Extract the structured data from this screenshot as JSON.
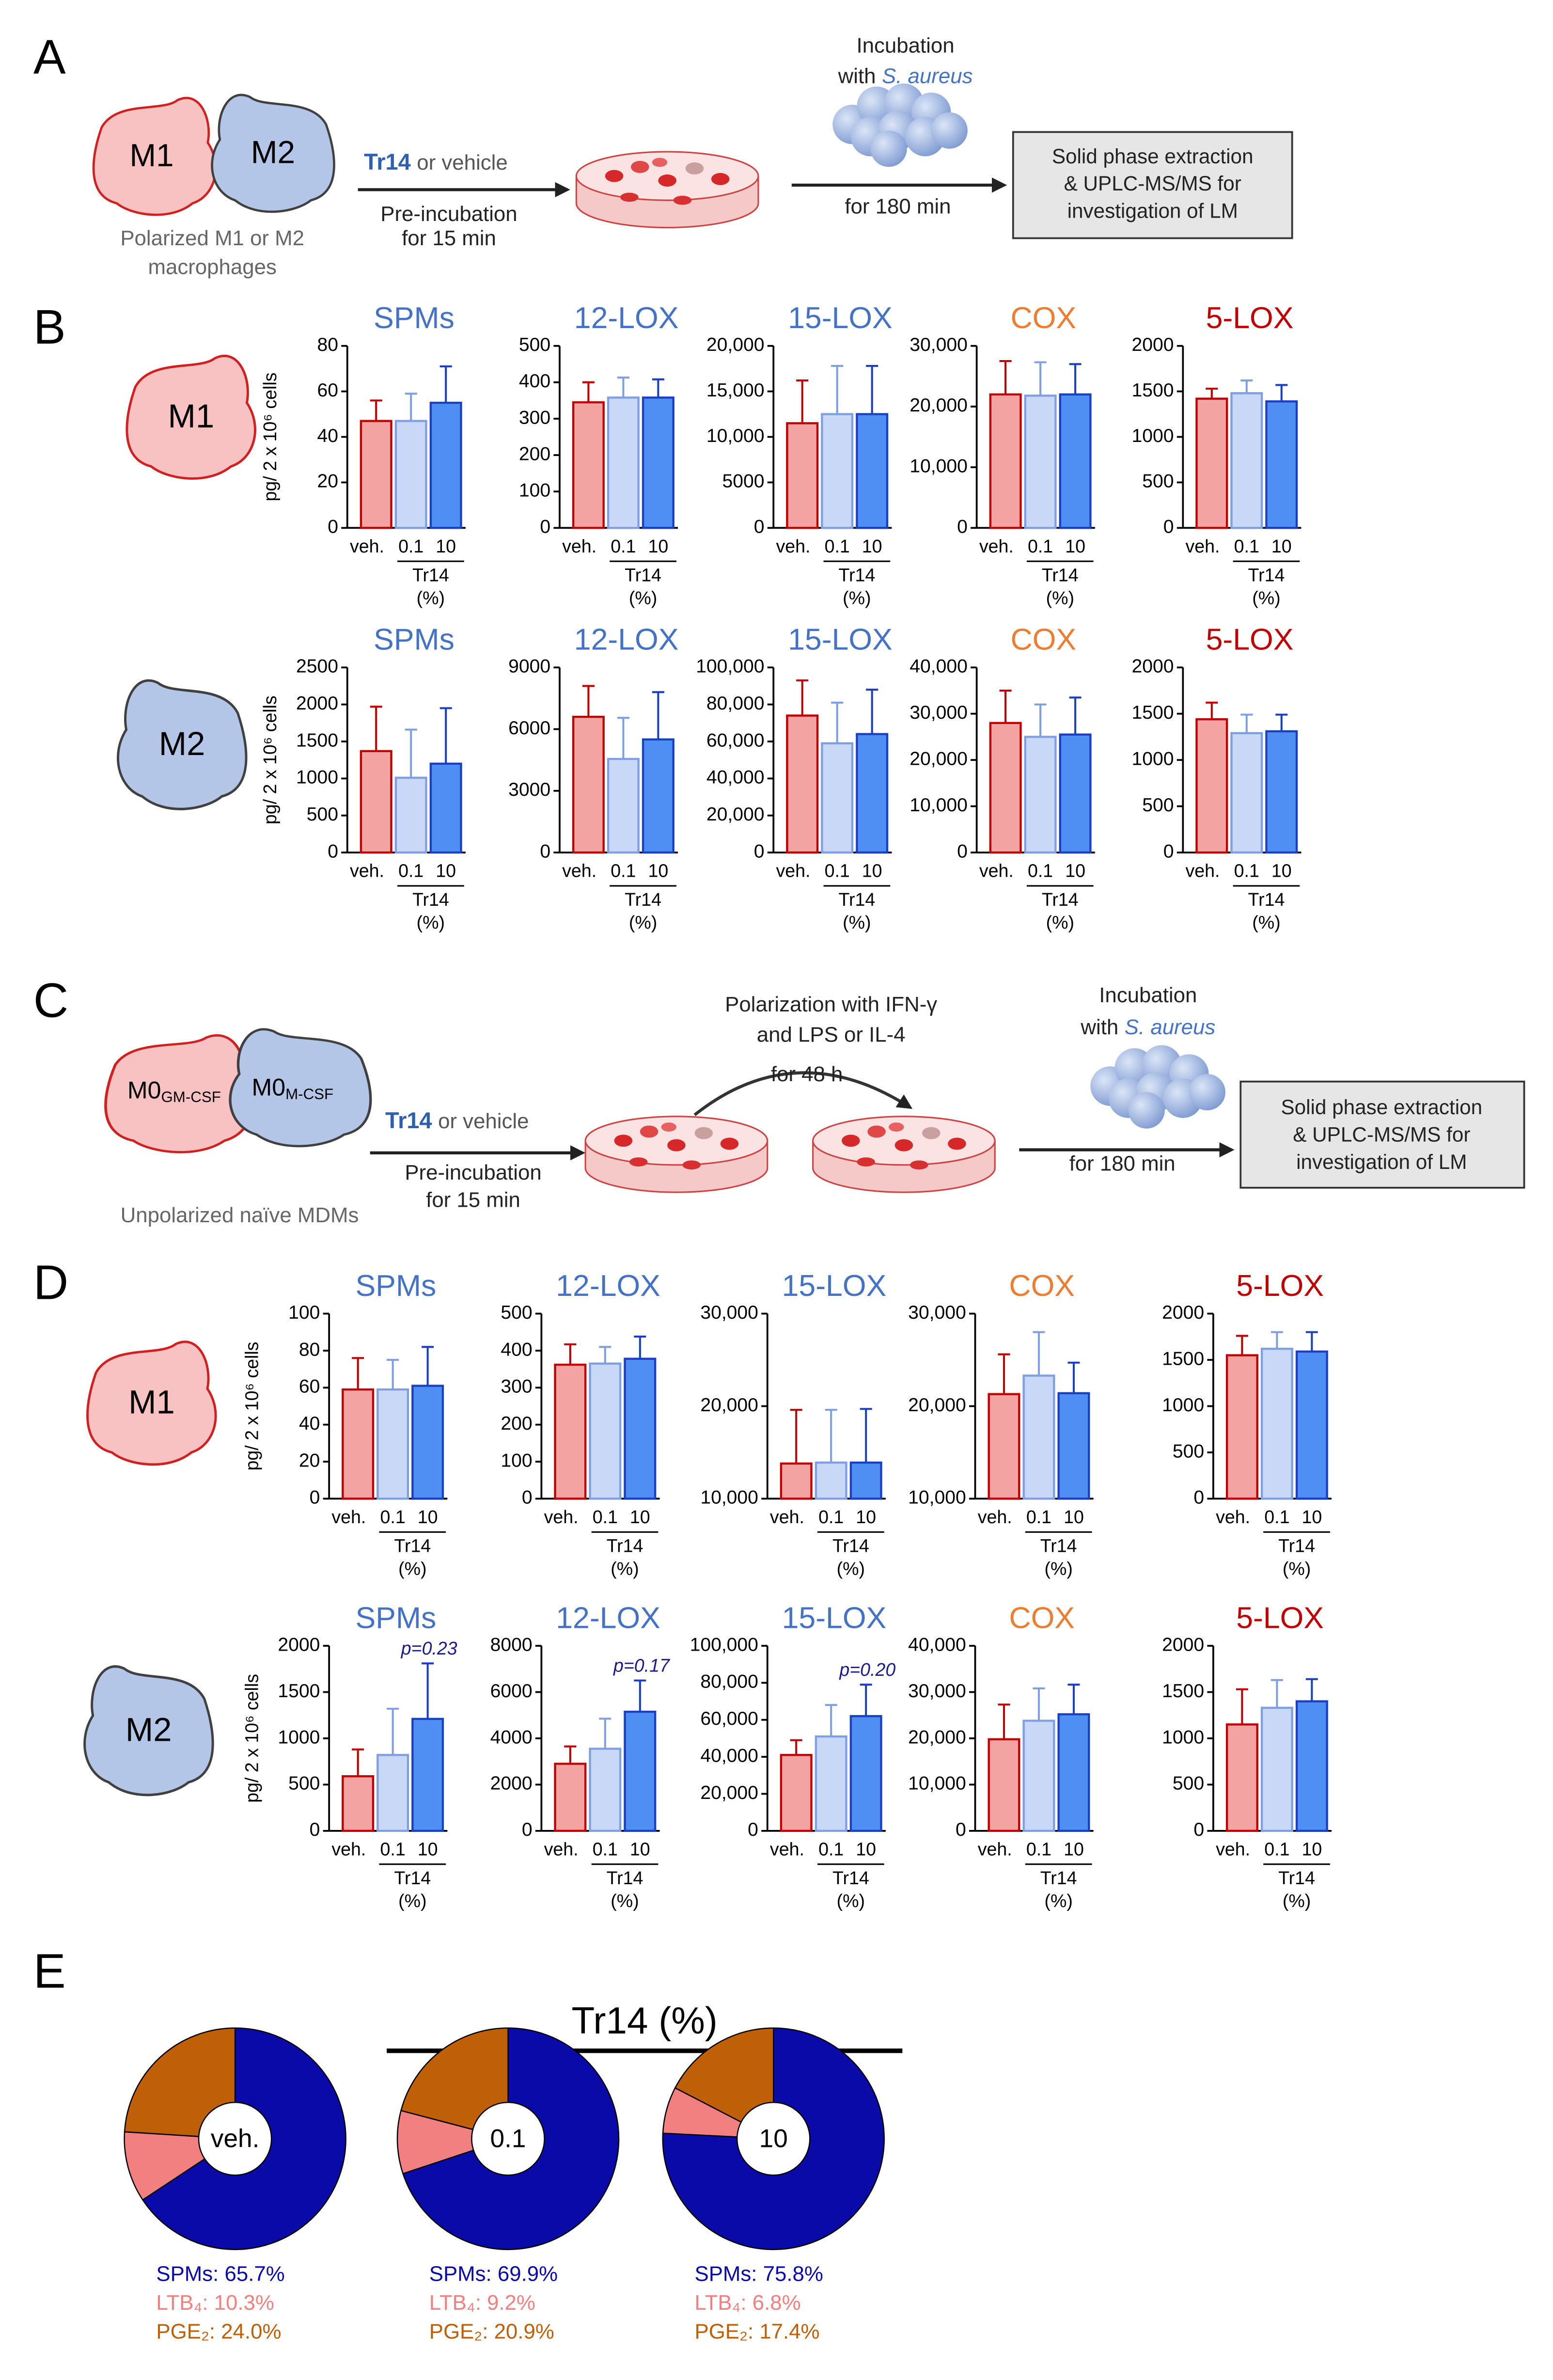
{
  "panel_labels": [
    "A",
    "B",
    "C",
    "D",
    "E"
  ],
  "diagram_a": {
    "cells": [
      "M1",
      "M2"
    ],
    "caption": [
      "Polarized M1 or M2",
      "macrophages"
    ],
    "treatment": "Tr14",
    "treatment_alt": "or vehicle",
    "preincubation": [
      "Pre-incubation",
      "for 15 min"
    ],
    "incubation": [
      "Incubation",
      "with"
    ],
    "bacterium": "S. aureus",
    "incubation_time": "for 180 min",
    "analysis": [
      "Solid phase extraction",
      "& UPLC-MS/MS for",
      "investigation  of LM"
    ]
  },
  "diagram_c": {
    "cells": [
      {
        "base": "M0",
        "sub": "GM-CSF"
      },
      {
        "base": "M0",
        "sub": "M-CSF"
      }
    ],
    "caption": "Unpolarized naïve MDMs",
    "treatment": "Tr14",
    "treatment_alt": "or vehicle",
    "preincubation": [
      "Pre-incubation",
      "for 15 min"
    ],
    "polarization": [
      "Polarization with IFN-γ",
      "and LPS or IL-4",
      "for 48 h"
    ],
    "incubation": [
      "Incubation",
      "with"
    ],
    "bacterium": "S. aureus",
    "incubation_time": "for 180 min",
    "analysis": [
      "Solid phase extraction",
      "& UPLC-MS/MS for",
      "investigation  of LM"
    ]
  },
  "row_cells": [
    "M1",
    "M2",
    "M1",
    "M2"
  ],
  "bar_style": {
    "fills": [
      "#f4a3a3",
      "#c9d8f7",
      "#4f8ef2"
    ],
    "strokes": [
      "#c00000",
      "#7f9fe0",
      "#1a3fc0"
    ]
  },
  "pie_group_title": "Tr14 (%)",
  "chart_data": [
    {
      "type": "bar",
      "title": "SPMs",
      "title_color": "#4472c4",
      "ylabel": "pg/ 2 x 10⁶ cells",
      "categories": [
        "veh.",
        "0.1",
        "10"
      ],
      "group_label": "Tr14",
      "group_unit": "(%)",
      "values": [
        47,
        47,
        55
      ],
      "errors": [
        9,
        12,
        16
      ],
      "ylim": [
        0,
        80
      ],
      "yticks": [
        0,
        20,
        40,
        60,
        80
      ]
    },
    {
      "type": "bar",
      "title": "12-LOX",
      "title_color": "#4472c4",
      "categories": [
        "veh.",
        "0.1",
        "10"
      ],
      "group_label": "Tr14",
      "group_unit": "(%)",
      "values": [
        345,
        358,
        358
      ],
      "errors": [
        55,
        55,
        50
      ],
      "ylim": [
        0,
        500
      ],
      "yticks": [
        0,
        100,
        200,
        300,
        400,
        500
      ]
    },
    {
      "type": "bar",
      "title": "15-LOX",
      "title_color": "#4472c4",
      "categories": [
        "veh.",
        "0.1",
        "10"
      ],
      "group_label": "Tr14",
      "group_unit": "(%)",
      "values": [
        11500,
        12500,
        12500
      ],
      "errors": [
        4700,
        5300,
        5300
      ],
      "ylim": [
        0,
        20000
      ],
      "yticks": [
        0,
        5000,
        {
          "value": 10000,
          "label": "10,000"
        },
        {
          "value": 15000,
          "label": "15,000"
        },
        {
          "value": 20000,
          "label": "20,000"
        }
      ]
    },
    {
      "type": "bar",
      "title": "COX",
      "title_color": "#ed7d31",
      "categories": [
        "veh.",
        "0.1",
        "10"
      ],
      "group_label": "Tr14",
      "group_unit": "(%)",
      "values": [
        22000,
        21800,
        22000
      ],
      "errors": [
        5500,
        5500,
        5000
      ],
      "ylim": [
        0,
        30000
      ],
      "yticks": [
        0,
        {
          "value": 10000,
          "label": "10,000"
        },
        {
          "value": 20000,
          "label": "20,000"
        },
        {
          "value": 30000,
          "label": "30,000"
        }
      ]
    },
    {
      "type": "bar",
      "title": "5-LOX",
      "title_color": "#c00000",
      "categories": [
        "veh.",
        "0.1",
        "10"
      ],
      "group_label": "Tr14",
      "group_unit": "(%)",
      "values": [
        1420,
        1480,
        1390
      ],
      "errors": [
        110,
        140,
        180
      ],
      "ylim": [
        0,
        2000
      ],
      "yticks": [
        0,
        500,
        1000,
        1500,
        2000
      ]
    },
    {
      "type": "bar",
      "title": "SPMs",
      "title_color": "#4472c4",
      "ylabel": "pg/ 2 x 10⁶ cells",
      "categories": [
        "veh.",
        "0.1",
        "10"
      ],
      "group_label": "Tr14",
      "group_unit": "(%)",
      "values": [
        1370,
        1010,
        1200
      ],
      "errors": [
        600,
        650,
        750
      ],
      "ylim": [
        0,
        2500
      ],
      "yticks": [
        0,
        500,
        1000,
        1500,
        2000,
        2500
      ]
    },
    {
      "type": "bar",
      "title": "12-LOX",
      "title_color": "#4472c4",
      "categories": [
        "veh.",
        "0.1",
        "10"
      ],
      "group_label": "Tr14",
      "group_unit": "(%)",
      "values": [
        6600,
        4550,
        5500
      ],
      "errors": [
        1500,
        2000,
        2300
      ],
      "ylim": [
        0,
        9000
      ],
      "yticks": [
        0,
        3000,
        6000,
        9000
      ]
    },
    {
      "type": "bar",
      "title": "15-LOX",
      "title_color": "#4472c4",
      "categories": [
        "veh.",
        "0.1",
        "10"
      ],
      "group_label": "Tr14",
      "group_unit": "(%)",
      "values": [
        74000,
        59000,
        64000
      ],
      "errors": [
        19000,
        22000,
        24000
      ],
      "ylim": [
        0,
        100000
      ],
      "yticks": [
        0,
        {
          "value": 20000,
          "label": "20,000"
        },
        {
          "value": 40000,
          "label": "40,000"
        },
        {
          "value": 60000,
          "label": "60,000"
        },
        {
          "value": 80000,
          "label": "80,000"
        },
        {
          "value": 100000,
          "label": "100,000"
        }
      ]
    },
    {
      "type": "bar",
      "title": "COX",
      "title_color": "#ed7d31",
      "categories": [
        "veh.",
        "0.1",
        "10"
      ],
      "group_label": "Tr14",
      "group_unit": "(%)",
      "values": [
        28000,
        25000,
        25500
      ],
      "errors": [
        7000,
        7000,
        8000
      ],
      "ylim": [
        0,
        40000
      ],
      "yticks": [
        0,
        {
          "value": 10000,
          "label": "10,000"
        },
        {
          "value": 20000,
          "label": "20,000"
        },
        {
          "value": 30000,
          "label": "30,000"
        },
        {
          "value": 40000,
          "label": "40,000"
        }
      ]
    },
    {
      "type": "bar",
      "title": "5-LOX",
      "title_color": "#c00000",
      "categories": [
        "veh.",
        "0.1",
        "10"
      ],
      "group_label": "Tr14",
      "group_unit": "(%)",
      "values": [
        1440,
        1290,
        1310
      ],
      "errors": [
        180,
        200,
        180
      ],
      "ylim": [
        0,
        2000
      ],
      "yticks": [
        0,
        500,
        1000,
        1500,
        2000
      ]
    },
    {
      "type": "bar",
      "title": "SPMs",
      "title_color": "#4472c4",
      "ylabel": "pg/ 2 x 10⁶ cells",
      "categories": [
        "veh.",
        "0.1",
        "10"
      ],
      "group_label": "Tr14",
      "group_unit": "(%)",
      "values": [
        59,
        59,
        61
      ],
      "errors": [
        17,
        16,
        21
      ],
      "ylim": [
        0,
        100
      ],
      "yticks": [
        0,
        20,
        40,
        60,
        80,
        100
      ]
    },
    {
      "type": "bar",
      "title": "12-LOX",
      "title_color": "#4472c4",
      "categories": [
        "veh.",
        "0.1",
        "10"
      ],
      "group_label": "Tr14",
      "group_unit": "(%)",
      "values": [
        362,
        365,
        378
      ],
      "errors": [
        55,
        45,
        60
      ],
      "ylim": [
        0,
        500
      ],
      "yticks": [
        0,
        100,
        200,
        300,
        400,
        500
      ]
    },
    {
      "type": "bar",
      "title": "15-LOX",
      "title_color": "#4472c4",
      "categories": [
        "veh.",
        "0.1",
        "10"
      ],
      "group_label": "Tr14",
      "group_unit": "(%)",
      "values": [
        13800,
        13900,
        13900
      ],
      "errors": [
        5800,
        5700,
        5800
      ],
      "ylim": [
        10000,
        30000
      ],
      "yticks": [
        {
          "value": 10000,
          "label": "10,000"
        },
        {
          "value": 20000,
          "label": "20,000"
        },
        {
          "value": 30000,
          "label": "30,000"
        }
      ]
    },
    {
      "type": "bar",
      "title": "COX",
      "title_color": "#ed7d31",
      "categories": [
        "veh.",
        "0.1",
        "10"
      ],
      "group_label": "Tr14",
      "group_unit": "(%)",
      "values": [
        21300,
        23300,
        21400
      ],
      "errors": [
        4300,
        4700,
        3300
      ],
      "ylim": [
        10000,
        30000
      ],
      "yticks": [
        {
          "value": 10000,
          "label": "10,000"
        },
        {
          "value": 20000,
          "label": "20,000"
        },
        {
          "value": 30000,
          "label": "30,000"
        }
      ]
    },
    {
      "type": "bar",
      "title": "5-LOX",
      "title_color": "#c00000",
      "categories": [
        "veh.",
        "0.1",
        "10"
      ],
      "group_label": "Tr14",
      "group_unit": "(%)",
      "values": [
        1550,
        1620,
        1590
      ],
      "errors": [
        210,
        180,
        210
      ],
      "ylim": [
        0,
        2000
      ],
      "yticks": [
        0,
        500,
        1000,
        1500,
        2000
      ]
    },
    {
      "type": "bar",
      "title": "SPMs",
      "title_color": "#4472c4",
      "ylabel": "pg/ 2 x 10⁶ cells",
      "categories": [
        "veh.",
        "0.1",
        "10"
      ],
      "group_label": "Tr14",
      "group_unit": "(%)",
      "values": [
        590,
        820,
        1210
      ],
      "errors": [
        290,
        500,
        600
      ],
      "ylim": [
        0,
        2000
      ],
      "yticks": [
        0,
        500,
        1000,
        1500,
        2000
      ],
      "annotation": "p=0.23"
    },
    {
      "type": "bar",
      "title": "12-LOX",
      "title_color": "#4472c4",
      "categories": [
        "veh.",
        "0.1",
        "10"
      ],
      "group_label": "Tr14",
      "group_unit": "(%)",
      "values": [
        2900,
        3550,
        5150
      ],
      "errors": [
        750,
        1300,
        1350
      ],
      "ylim": [
        0,
        8000
      ],
      "yticks": [
        0,
        2000,
        4000,
        6000,
        8000
      ],
      "annotation": "p=0.17"
    },
    {
      "type": "bar",
      "title": "15-LOX",
      "title_color": "#4472c4",
      "categories": [
        "veh.",
        "0.1",
        "10"
      ],
      "group_label": "Tr14",
      "group_unit": "(%)",
      "values": [
        41000,
        51000,
        62000
      ],
      "errors": [
        8000,
        17000,
        17000
      ],
      "ylim": [
        0,
        100000
      ],
      "yticks": [
        0,
        {
          "value": 20000,
          "label": "20,000"
        },
        {
          "value": 40000,
          "label": "40,000"
        },
        {
          "value": 60000,
          "label": "60,000"
        },
        {
          "value": 80000,
          "label": "80,000"
        },
        {
          "value": 100000,
          "label": "100,000"
        }
      ],
      "annotation": "p=0.20"
    },
    {
      "type": "bar",
      "title": "COX",
      "title_color": "#ed7d31",
      "categories": [
        "veh.",
        "0.1",
        "10"
      ],
      "group_label": "Tr14",
      "group_unit": "(%)",
      "values": [
        19800,
        23800,
        25200
      ],
      "errors": [
        7500,
        7000,
        6400
      ],
      "ylim": [
        0,
        40000
      ],
      "yticks": [
        0,
        {
          "value": 10000,
          "label": "10,000"
        },
        {
          "value": 20000,
          "label": "20,000"
        },
        {
          "value": 30000,
          "label": "30,000"
        },
        {
          "value": 40000,
          "label": "40,000"
        }
      ]
    },
    {
      "type": "bar",
      "title": "5-LOX",
      "title_color": "#c00000",
      "categories": [
        "veh.",
        "0.1",
        "10"
      ],
      "group_label": "Tr14",
      "group_unit": "(%)",
      "values": [
        1150,
        1330,
        1400
      ],
      "errors": [
        380,
        300,
        240
      ],
      "ylim": [
        0,
        2000
      ],
      "yticks": [
        0,
        500,
        1000,
        1500,
        2000
      ]
    },
    {
      "type": "pie",
      "center_label": "veh.",
      "values": [
        65.7,
        10.3,
        24.0
      ],
      "value_labels": [
        "SPMs: 65.7%",
        "LTB₄: 10.3%",
        "PGE₂: 24.0%"
      ],
      "colors": [
        "#0a0aa8",
        "#f28080",
        "#bf5f08"
      ]
    },
    {
      "type": "pie",
      "center_label": "0.1",
      "values": [
        69.9,
        9.2,
        20.9
      ],
      "value_labels": [
        "SPMs: 69.9%",
        "LTB₄: 9.2%",
        "PGE₂: 20.9%"
      ],
      "colors": [
        "#0a0aa8",
        "#f28080",
        "#bf5f08"
      ]
    },
    {
      "type": "pie",
      "center_label": "10",
      "values": [
        75.8,
        6.8,
        17.4
      ],
      "value_labels": [
        "SPMs: 75.8%",
        "LTB₄: 6.8%",
        "PGE₂: 17.4%"
      ],
      "colors": [
        "#0a0aa8",
        "#f28080",
        "#bf5f08"
      ]
    }
  ]
}
